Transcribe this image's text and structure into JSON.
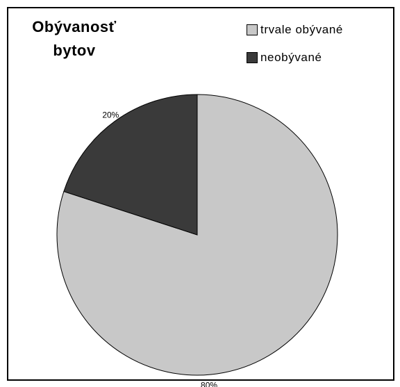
{
  "chart_data": {
    "type": "pie",
    "title": "Obývanosť bytov",
    "categories": [
      "trvale obývané",
      "neobývané"
    ],
    "values": [
      80,
      20
    ],
    "data_labels": [
      "80%",
      "20%"
    ],
    "colors": [
      "#c8c8c8",
      "#3a3a3a"
    ],
    "legend_position": "top-right"
  }
}
